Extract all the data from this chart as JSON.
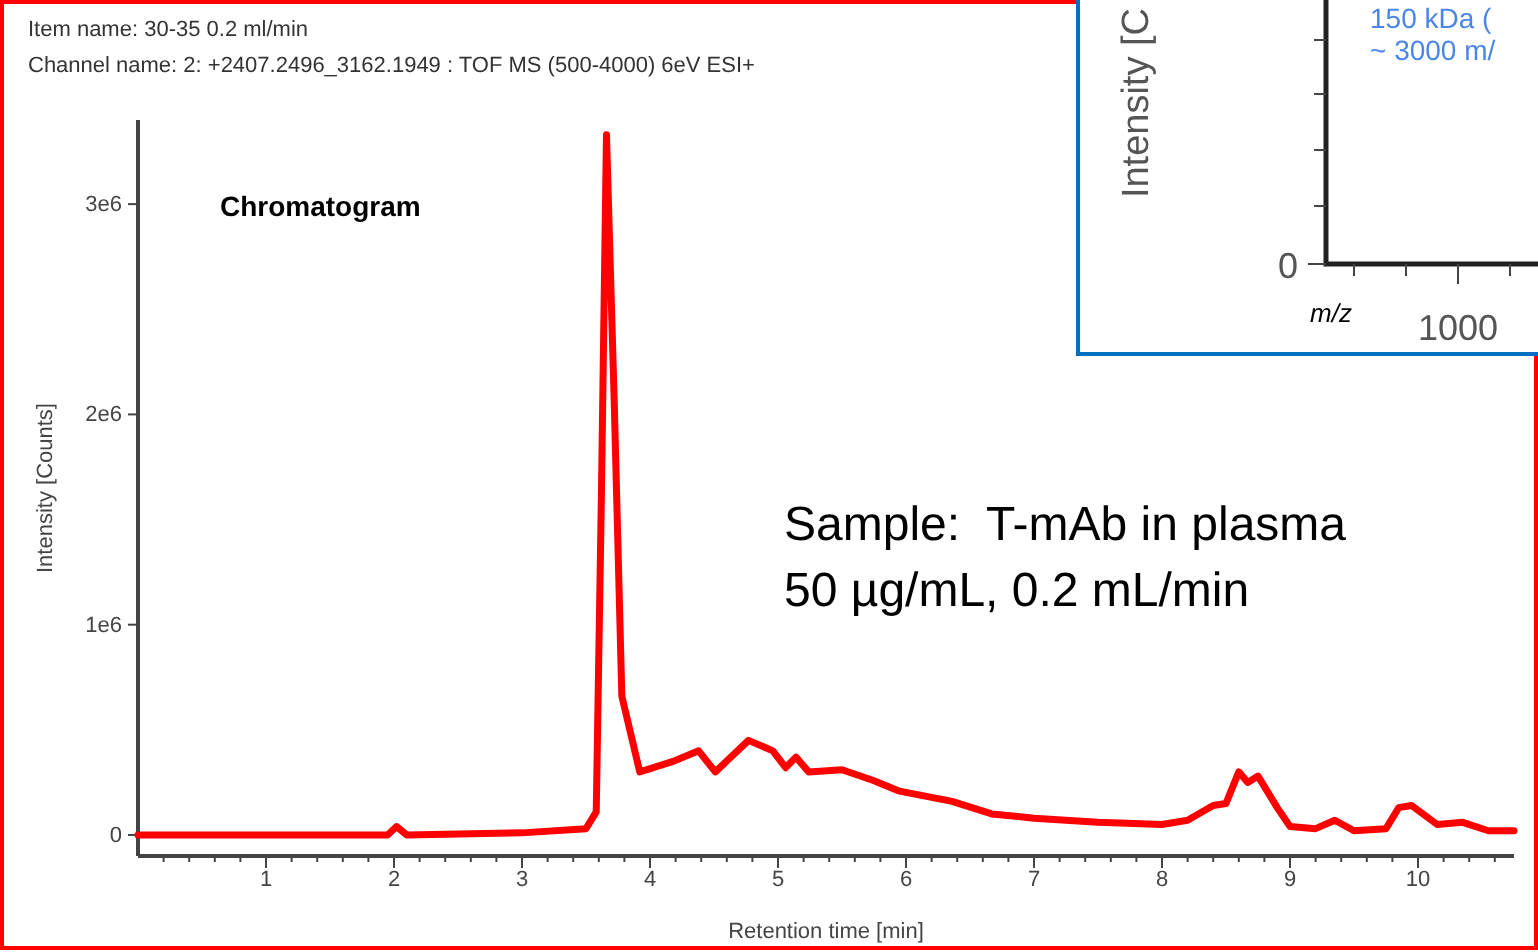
{
  "chart_data": [
    {
      "type": "line",
      "title": "Item name: 30-35 0.2 ml/min",
      "subtitle": "Channel name: 2: +2407.2496_3162.1949 : TOF MS (500-4000) 6eV ESI+",
      "xlabel": "Retention time [min]",
      "ylabel": "Intensity [Counts]",
      "annotations": [
        "Chromatogram",
        "Sample:  T-mAb in plasma",
        "50 µg/mL, 0.2 mL/min"
      ],
      "xlim": [
        0,
        10.75
      ],
      "ylim": [
        -100000,
        3400000
      ],
      "xticks": [
        {
          "value": 0.2,
          "label": null
        },
        {
          "value": 0.4,
          "label": null
        },
        {
          "value": 0.6,
          "label": null
        },
        {
          "value": 0.8,
          "label": null
        },
        1,
        {
          "value": 1.2,
          "label": null
        },
        {
          "value": 1.4,
          "label": null
        },
        {
          "value": 1.6,
          "label": null
        },
        {
          "value": 1.8,
          "label": null
        },
        2,
        {
          "value": 2.2,
          "label": null
        },
        {
          "value": 2.4,
          "label": null
        },
        {
          "value": 2.6,
          "label": null
        },
        {
          "value": 2.8,
          "label": null
        },
        3,
        {
          "value": 3.2,
          "label": null
        },
        {
          "value": 3.4,
          "label": null
        },
        {
          "value": 3.6,
          "label": null
        },
        {
          "value": 3.8,
          "label": null
        },
        4,
        {
          "value": 4.2,
          "label": null
        },
        {
          "value": 4.4,
          "label": null
        },
        {
          "value": 4.6,
          "label": null
        },
        {
          "value": 4.8,
          "label": null
        },
        5,
        {
          "value": 5.2,
          "label": null
        },
        {
          "value": 5.4,
          "label": null
        },
        {
          "value": 5.6,
          "label": null
        },
        {
          "value": 5.8,
          "label": null
        },
        6,
        {
          "value": 6.2,
          "label": null
        },
        {
          "value": 6.4,
          "label": null
        },
        {
          "value": 6.6,
          "label": null
        },
        {
          "value": 6.8,
          "label": null
        },
        7,
        {
          "value": 7.2,
          "label": null
        },
        {
          "value": 7.4,
          "label": null
        },
        {
          "value": 7.6,
          "label": null
        },
        {
          "value": 7.8,
          "label": null
        },
        8,
        {
          "value": 8.2,
          "label": null
        },
        {
          "value": 8.4,
          "label": null
        },
        {
          "value": 8.6,
          "label": null
        },
        {
          "value": 8.8,
          "label": null
        },
        9,
        {
          "value": 9.2,
          "label": null
        },
        {
          "value": 9.4,
          "label": null
        },
        {
          "value": 9.6,
          "label": null
        },
        {
          "value": 9.8,
          "label": null
        },
        10,
        {
          "value": 10.2,
          "label": null
        },
        {
          "value": 10.4,
          "label": null
        },
        {
          "value": 10.6,
          "label": null
        }
      ],
      "yticks": [
        {
          "value": 0,
          "label": "0"
        },
        {
          "value": 1000000,
          "label": "1e6"
        },
        {
          "value": 2000000,
          "label": "2e6"
        },
        {
          "value": 3000000,
          "label": "3e6"
        }
      ],
      "grid": false,
      "marker": "none",
      "line_style": "solid",
      "series": [
        {
          "color": "#ff0000",
          "x": [
            0,
            1,
            1.95,
            2.02,
            2.1,
            3,
            3.5,
            3.58,
            3.62,
            3.66,
            3.72,
            3.78,
            3.92,
            4.18,
            4.38,
            4.51,
            4.77,
            4.96,
            5.06,
            5.14,
            5.24,
            5.5,
            5.74,
            5.94,
            6.36,
            6.67,
            7,
            7.5,
            8,
            8.2,
            8.4,
            8.5,
            8.6,
            8.67,
            8.75,
            8.9,
            9,
            9.2,
            9.35,
            9.5,
            9.75,
            9.85,
            9.95,
            10.15,
            10.35,
            10.55,
            10.75
          ],
          "values": [
            0,
            0,
            0,
            40000.0,
            0,
            10000.0,
            30000.0,
            110000.0,
            1600000.0,
            3330000.0,
            2070000.0,
            660000.0,
            300000.0,
            350000.0,
            400000.0,
            300000.0,
            450000.0,
            400000.0,
            320000.0,
            370000.0,
            300000.0,
            310000.0,
            260000.0,
            210000.0,
            160000.0,
            100000.0,
            80000.0,
            60000.0,
            50000.0,
            70000.0,
            140000.0,
            150000.0,
            300000.0,
            250000.0,
            280000.0,
            130000.0,
            40000.0,
            30000.0,
            70000.0,
            20000.0,
            30000.0,
            130000.0,
            140000.0,
            50000.0,
            60000.0,
            20000.0,
            20000.0
          ]
        }
      ]
    },
    {
      "type": "other",
      "ylabel": "Intensity [C",
      "xlabel": "m/z",
      "annotations": [
        "150 kDa (",
        "~ 3000 m/",
        "0",
        "1000"
      ]
    }
  ]
}
